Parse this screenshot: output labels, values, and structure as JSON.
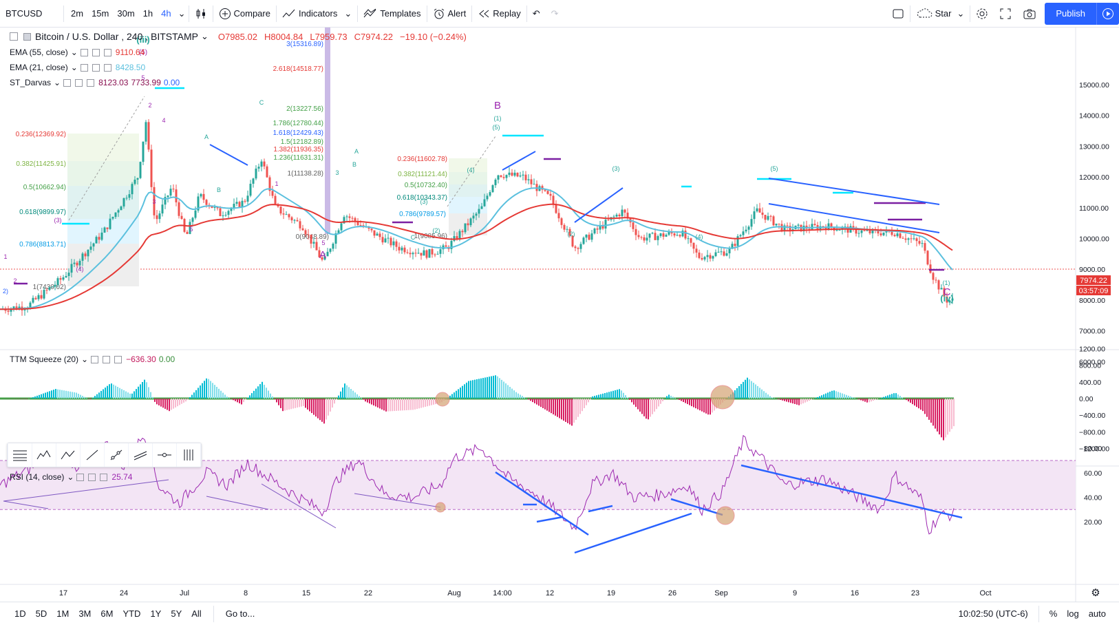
{
  "toolbar": {
    "symbol": "BTCUSD",
    "intervals": [
      "2m",
      "15m",
      "30m",
      "1h",
      "4h"
    ],
    "active_interval": "4h",
    "compare": "Compare",
    "indicators": "Indicators",
    "templates": "Templates",
    "alert": "Alert",
    "replay": "Replay",
    "layout_name": "Star",
    "publish": "Publish"
  },
  "main_legend": {
    "title": "Bitcoin / U.S. Dollar",
    "interval": "240",
    "exchange": "BITSTAMP",
    "o": "O7985.02",
    "h": "H8004.84",
    "l": "L7959.73",
    "c": "C7974.22",
    "chg": "−19.10 (−0.24%)"
  },
  "indicators": {
    "ema55": {
      "label": "EMA (55, close)",
      "value": "9110.64"
    },
    "ema21": {
      "label": "EMA (21, close)",
      "value": "8428.50"
    },
    "darvas": {
      "label": "ST_Darvas",
      "v1": "8123.03",
      "v2": "7733.99",
      "v3": "0.00"
    },
    "ttm": {
      "label": "TTM Squeeze (20)",
      "v1": "−636.30",
      "v2": "0.00"
    },
    "rsi": {
      "label": "RSI (14, close)",
      "value": "25.74"
    }
  },
  "colors": {
    "accent": "#2962ff",
    "ema55": "#e53935",
    "ema21": "#5bc0de",
    "up": "#26a69a",
    "down": "#ef5350",
    "fib": "#e53935",
    "rsi": "#9c27b0",
    "rsi_band": "#f3e5f5",
    "wave": "#9c27b0",
    "darvas": "#00e5ff"
  },
  "price_axis": {
    "ticks": [
      "15000.00",
      "14000.00",
      "13000.00",
      "12000.00",
      "11000.00",
      "10000.00",
      "9000.00",
      "8000.00",
      "7000.00",
      "6000.00"
    ],
    "last_price": "7974.22",
    "countdown": "03:57:09"
  },
  "ttm_axis": {
    "ticks": [
      "1200.00",
      "800.00",
      "400.00",
      "0.00",
      "−400.00",
      "−800.00",
      "−1200.00"
    ]
  },
  "rsi_axis": {
    "ticks": [
      "80.00",
      "60.00",
      "40.00",
      "20.00"
    ]
  },
  "time_axis": {
    "labels": [
      "17",
      "24",
      "Jul",
      "8",
      "15",
      "22",
      "Aug",
      "14:00",
      "12",
      "19",
      "26",
      "Sep",
      "9",
      "16",
      "23",
      "Oct"
    ]
  },
  "fib_labels_left": [
    "0.236(12369.92)",
    "0.382(11425.91)",
    "0.5(10662.94)",
    "0.618(9899.97)",
    "0.786(8813.71)",
    "1(7430.02)"
  ],
  "fib_labels_mid": [
    "3(15316.89)",
    "2.618(14518.77)",
    "2(13227.56)",
    "1.786(12780.44)",
    "1.618(12429.43)",
    "1.5(12182.89)",
    "1.382(11936.35)",
    "1.236(11631.31)",
    "1(11138.28)"
  ],
  "fib_labels_right": [
    "0.236(11602.78)",
    "0.382(11121.44)",
    "0.5(10732.40)",
    "0.618(10343.37)",
    "0.786(9789.57)",
    "1(9085.96)",
    "0(9048.89)"
  ],
  "wave_labels": [
    "(iii)",
    "(5)",
    "5",
    "2",
    "4",
    "3",
    "5",
    "(3)",
    "(4)",
    "1",
    "2",
    "2)",
    "A",
    "B",
    "C",
    "1",
    "3",
    "5",
    "A",
    "B",
    "C",
    "(1)",
    "(2)",
    "(3)",
    "(4)",
    "(5)",
    "(1)",
    "(2)",
    "(3)",
    "(4)",
    "(5)",
    "(iv)"
  ],
  "bottom": {
    "ranges": [
      "1D",
      "5D",
      "1M",
      "3M",
      "6M",
      "YTD",
      "1Y",
      "5Y",
      "All"
    ],
    "goto": "Go to...",
    "time": "10:02:50 (UTC-6)",
    "pct": "%",
    "log": "log",
    "auto": "auto"
  }
}
